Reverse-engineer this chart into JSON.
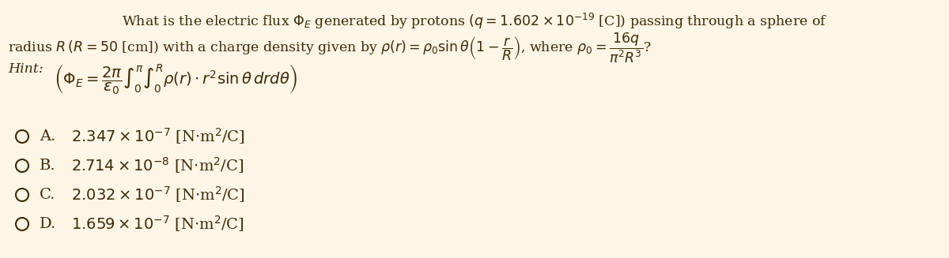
{
  "background_color": "#fdf5e6",
  "text_color": "#3d2b0a",
  "title_line1": "What is the electric flux $\\Phi_E$ generated by protons $(q = 1.602 \\times 10^{-19}$ [C]) passing through a sphere of",
  "title_line2": "radius $R\\,(R = 50$ [cm]) with a charge density given by $\\rho(r) = \\rho_0 \\sin\\theta\\left(1 - \\dfrac{r}{R}\\right)$, where $\\rho_0 = \\dfrac{16q}{\\pi^2 R^3}$?",
  "hint_label": "Hint:",
  "hint_formula": "$\\left(\\Phi_E = \\dfrac{2\\pi}{\\epsilon_0} \\int_0^{\\pi} \\int_0^{R} \\rho(r) \\cdot r^2 \\sin\\theta\\, dr d\\theta\\right)$",
  "options": [
    {
      "label": "A.",
      "value": "$2.347 \\times 10^{-7}$ [N$\\cdot$m$^2$/C]"
    },
    {
      "label": "B.",
      "value": "$2.714 \\times 10^{-8}$ [N$\\cdot$m$^2$/C]"
    },
    {
      "label": "C.",
      "value": "$2.032 \\times 10^{-7}$ [N$\\cdot$m$^2$/C]"
    },
    {
      "label": "D.",
      "value": "$1.659 \\times 10^{-7}$ [N$\\cdot$m$^2$/C]"
    }
  ],
  "font_size_title": 12.5,
  "font_size_hint_label": 12.5,
  "font_size_hint": 14,
  "font_size_options": 14
}
